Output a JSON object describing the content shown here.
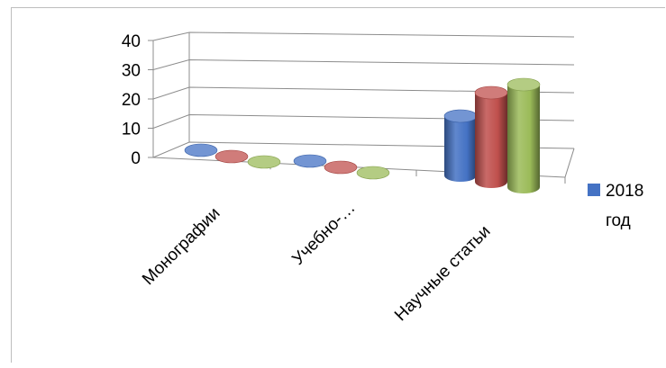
{
  "chart_data": {
    "type": "bar",
    "variant": "3d-cylinder-clustered",
    "categories": [
      "Монографии",
      "Учебно-…",
      "Научные статьи"
    ],
    "series": [
      {
        "name": "2018 год",
        "color": "#4472c4",
        "values": [
          0,
          0,
          22
        ]
      },
      {
        "name": "",
        "color": "#c0504d",
        "values": [
          0,
          0,
          33
        ]
      },
      {
        "name": "",
        "color": "#9bbb59",
        "values": [
          0,
          0,
          38
        ]
      }
    ],
    "yticks": [
      "40",
      "30",
      "20",
      "10",
      "0"
    ],
    "ylim": [
      0,
      40
    ],
    "grid": true,
    "legend_position": "right",
    "legend": {
      "label_line1": "2018",
      "label_line2": "год",
      "color": "#4472c4"
    }
  }
}
